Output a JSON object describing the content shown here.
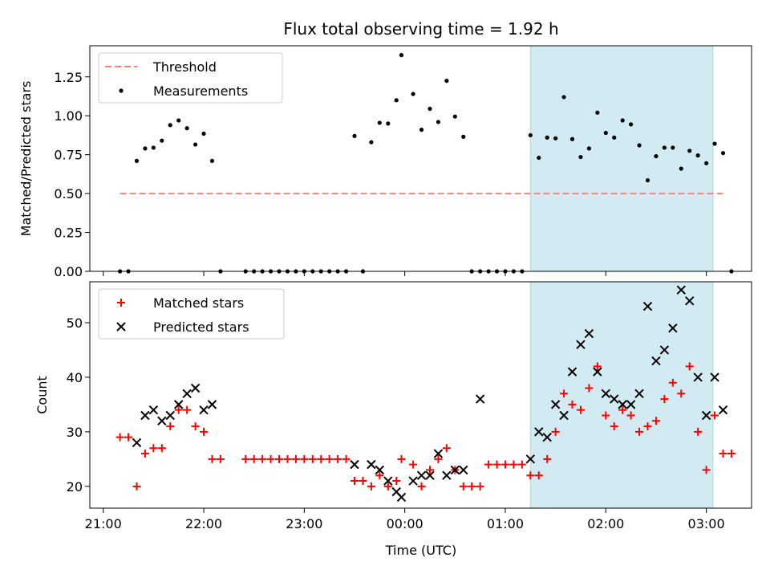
{
  "chart_data": [
    {
      "type": "scatter",
      "title": "Flux total observing time = 1.92 h",
      "xlabel": "",
      "ylabel": "Matched/Predicted stars",
      "xlim": [
        "20:52",
        "03:27"
      ],
      "ylim": [
        0,
        1.45
      ],
      "x_ticks": [
        "21:00",
        "22:00",
        "23:00",
        "00:00",
        "01:00",
        "02:00",
        "03:00"
      ],
      "y_ticks": [
        "0.00",
        "0.25",
        "0.50",
        "0.75",
        "1.00",
        "1.25"
      ],
      "shaded_region": {
        "x": [
          "01:15",
          "03:04"
        ],
        "color": "#add8e6"
      },
      "legend": {
        "position": "top-left",
        "entries": [
          "Threshold",
          "Measurements"
        ]
      },
      "series": [
        {
          "name": "Threshold",
          "style": "dashed-line",
          "color": "#ff7f7f",
          "x": [
            "21:10",
            "03:10"
          ],
          "y": [
            0.5,
            0.5
          ]
        },
        {
          "name": "Measurements",
          "style": "dot",
          "color": "#000000",
          "points": [
            [
              "21:10",
              0
            ],
            [
              "21:15",
              0
            ],
            [
              "21:20",
              0.71
            ],
            [
              "21:25",
              0.79
            ],
            [
              "21:30",
              0.795
            ],
            [
              "21:35",
              0.84
            ],
            [
              "21:40",
              0.94
            ],
            [
              "21:45",
              0.97
            ],
            [
              "21:50",
              0.92
            ],
            [
              "21:55",
              0.815
            ],
            [
              "22:00",
              0.885
            ],
            [
              "22:05",
              0.71
            ],
            [
              "22:10",
              0
            ],
            [
              "22:25",
              0
            ],
            [
              "22:30",
              0
            ],
            [
              "22:35",
              0
            ],
            [
              "22:40",
              0
            ],
            [
              "22:45",
              0
            ],
            [
              "22:50",
              0
            ],
            [
              "22:55",
              0
            ],
            [
              "23:00",
              0
            ],
            [
              "23:05",
              0
            ],
            [
              "23:10",
              0
            ],
            [
              "23:15",
              0
            ],
            [
              "23:20",
              0
            ],
            [
              "23:25",
              0
            ],
            [
              "23:30",
              0.87
            ],
            [
              "23:35",
              0
            ],
            [
              "23:40",
              0.83
            ],
            [
              "23:45",
              0.955
            ],
            [
              "23:50",
              0.95
            ],
            [
              "23:55",
              1.1
            ],
            [
              "23:58",
              1.39
            ],
            [
              "00:05",
              1.14
            ],
            [
              "00:10",
              0.91
            ],
            [
              "00:15",
              1.045
            ],
            [
              "00:20",
              0.96
            ],
            [
              "00:25",
              1.225
            ],
            [
              "00:30",
              0.995
            ],
            [
              "00:35",
              0.865
            ],
            [
              "00:40",
              0
            ],
            [
              "00:45",
              0
            ],
            [
              "00:50",
              0
            ],
            [
              "00:55",
              0
            ],
            [
              "01:00",
              0
            ],
            [
              "01:05",
              0
            ],
            [
              "01:10",
              0
            ],
            [
              "01:15",
              0.875
            ],
            [
              "01:20",
              0.73
            ],
            [
              "01:25",
              0.86
            ],
            [
              "01:30",
              0.855
            ],
            [
              "01:35",
              1.12
            ],
            [
              "01:40",
              0.85
            ],
            [
              "01:45",
              0.735
            ],
            [
              "01:50",
              0.79
            ],
            [
              "01:55",
              1.02
            ],
            [
              "02:00",
              0.89
            ],
            [
              "02:05",
              0.86
            ],
            [
              "02:10",
              0.97
            ],
            [
              "02:15",
              0.945
            ],
            [
              "02:20",
              0.81
            ],
            [
              "02:25",
              0.585
            ],
            [
              "02:30",
              0.74
            ],
            [
              "02:35",
              0.795
            ],
            [
              "02:40",
              0.795
            ],
            [
              "02:45",
              0.66
            ],
            [
              "02:50",
              0.775
            ],
            [
              "02:55",
              0.745
            ],
            [
              "03:00",
              0.695
            ],
            [
              "03:05",
              0.82
            ],
            [
              "03:10",
              0.76
            ],
            [
              "03:15",
              0
            ]
          ]
        }
      ]
    },
    {
      "type": "scatter",
      "title": "",
      "xlabel": "Time (UTC)",
      "ylabel": "Count",
      "xlim": [
        "20:52",
        "03:27"
      ],
      "ylim": [
        16,
        57.5
      ],
      "x_ticks": [
        "21:00",
        "22:00",
        "23:00",
        "00:00",
        "01:00",
        "02:00",
        "03:00"
      ],
      "y_ticks": [
        "20",
        "30",
        "40",
        "50"
      ],
      "shaded_region": {
        "x": [
          "01:15",
          "03:04"
        ],
        "color": "#add8e6"
      },
      "legend": {
        "position": "top-left",
        "entries": [
          "Matched stars",
          "Predicted stars"
        ]
      },
      "series": [
        {
          "name": "Matched stars",
          "marker": "+",
          "color": "#ff0000",
          "points": [
            [
              "21:10",
              29
            ],
            [
              "21:15",
              29
            ],
            [
              "21:20",
              20
            ],
            [
              "21:25",
              26
            ],
            [
              "21:30",
              27
            ],
            [
              "21:35",
              27
            ],
            [
              "21:40",
              31
            ],
            [
              "21:45",
              34
            ],
            [
              "21:50",
              34
            ],
            [
              "21:55",
              31
            ],
            [
              "22:00",
              30
            ],
            [
              "22:05",
              25
            ],
            [
              "22:10",
              25
            ],
            [
              "22:25",
              25
            ],
            [
              "22:30",
              25
            ],
            [
              "22:35",
              25
            ],
            [
              "22:40",
              25
            ],
            [
              "22:45",
              25
            ],
            [
              "22:50",
              25
            ],
            [
              "22:55",
              25
            ],
            [
              "23:00",
              25
            ],
            [
              "23:05",
              25
            ],
            [
              "23:10",
              25
            ],
            [
              "23:15",
              25
            ],
            [
              "23:20",
              25
            ],
            [
              "23:25",
              25
            ],
            [
              "23:30",
              21
            ],
            [
              "23:35",
              21
            ],
            [
              "23:40",
              20
            ],
            [
              "23:45",
              22
            ],
            [
              "23:50",
              20
            ],
            [
              "23:55",
              21
            ],
            [
              "23:58",
              25
            ],
            [
              "00:05",
              24
            ],
            [
              "00:10",
              20
            ],
            [
              "00:15",
              23
            ],
            [
              "00:20",
              25
            ],
            [
              "00:25",
              27
            ],
            [
              "00:30",
              23
            ],
            [
              "00:35",
              20
            ],
            [
              "00:40",
              20
            ],
            [
              "00:45",
              20
            ],
            [
              "00:50",
              24
            ],
            [
              "00:55",
              24
            ],
            [
              "01:00",
              24
            ],
            [
              "01:05",
              24
            ],
            [
              "01:10",
              24
            ],
            [
              "01:15",
              22
            ],
            [
              "01:20",
              22
            ],
            [
              "01:25",
              25
            ],
            [
              "01:30",
              30
            ],
            [
              "01:35",
              37
            ],
            [
              "01:40",
              35
            ],
            [
              "01:45",
              34
            ],
            [
              "01:50",
              38
            ],
            [
              "01:55",
              42
            ],
            [
              "02:00",
              33
            ],
            [
              "02:05",
              31
            ],
            [
              "02:10",
              34
            ],
            [
              "02:15",
              33
            ],
            [
              "02:20",
              30
            ],
            [
              "02:25",
              31
            ],
            [
              "02:30",
              32
            ],
            [
              "02:35",
              36
            ],
            [
              "02:40",
              39
            ],
            [
              "02:45",
              37
            ],
            [
              "02:50",
              42
            ],
            [
              "02:55",
              30
            ],
            [
              "03:00",
              23
            ],
            [
              "03:05",
              33
            ],
            [
              "03:10",
              26
            ],
            [
              "03:15",
              26
            ]
          ]
        },
        {
          "name": "Predicted stars",
          "marker": "x",
          "color": "#000000",
          "points": [
            [
              "21:20",
              28
            ],
            [
              "21:25",
              33
            ],
            [
              "21:30",
              34
            ],
            [
              "21:35",
              32
            ],
            [
              "21:40",
              33
            ],
            [
              "21:45",
              35
            ],
            [
              "21:50",
              37
            ],
            [
              "21:55",
              38
            ],
            [
              "22:00",
              34
            ],
            [
              "22:05",
              35
            ],
            [
              "23:30",
              24
            ],
            [
              "23:40",
              24
            ],
            [
              "23:45",
              23
            ],
            [
              "23:50",
              21
            ],
            [
              "23:55",
              19
            ],
            [
              "23:58",
              18
            ],
            [
              "00:05",
              21
            ],
            [
              "00:10",
              22
            ],
            [
              "00:15",
              22
            ],
            [
              "00:20",
              26
            ],
            [
              "00:25",
              22
            ],
            [
              "00:30",
              23
            ],
            [
              "00:35",
              23
            ],
            [
              "00:45",
              36
            ],
            [
              "01:15",
              25
            ],
            [
              "01:20",
              30
            ],
            [
              "01:25",
              29
            ],
            [
              "01:30",
              35
            ],
            [
              "01:35",
              33
            ],
            [
              "01:40",
              41
            ],
            [
              "01:45",
              46
            ],
            [
              "01:50",
              48
            ],
            [
              "01:55",
              41
            ],
            [
              "02:00",
              37
            ],
            [
              "02:05",
              36
            ],
            [
              "02:10",
              35
            ],
            [
              "02:15",
              35
            ],
            [
              "02:20",
              37
            ],
            [
              "02:25",
              53
            ],
            [
              "02:30",
              43
            ],
            [
              "02:35",
              45
            ],
            [
              "02:40",
              49
            ],
            [
              "02:45",
              56
            ],
            [
              "02:50",
              54
            ],
            [
              "02:55",
              40
            ],
            [
              "03:00",
              33
            ],
            [
              "03:05",
              40
            ],
            [
              "03:10",
              34
            ]
          ]
        }
      ]
    }
  ]
}
